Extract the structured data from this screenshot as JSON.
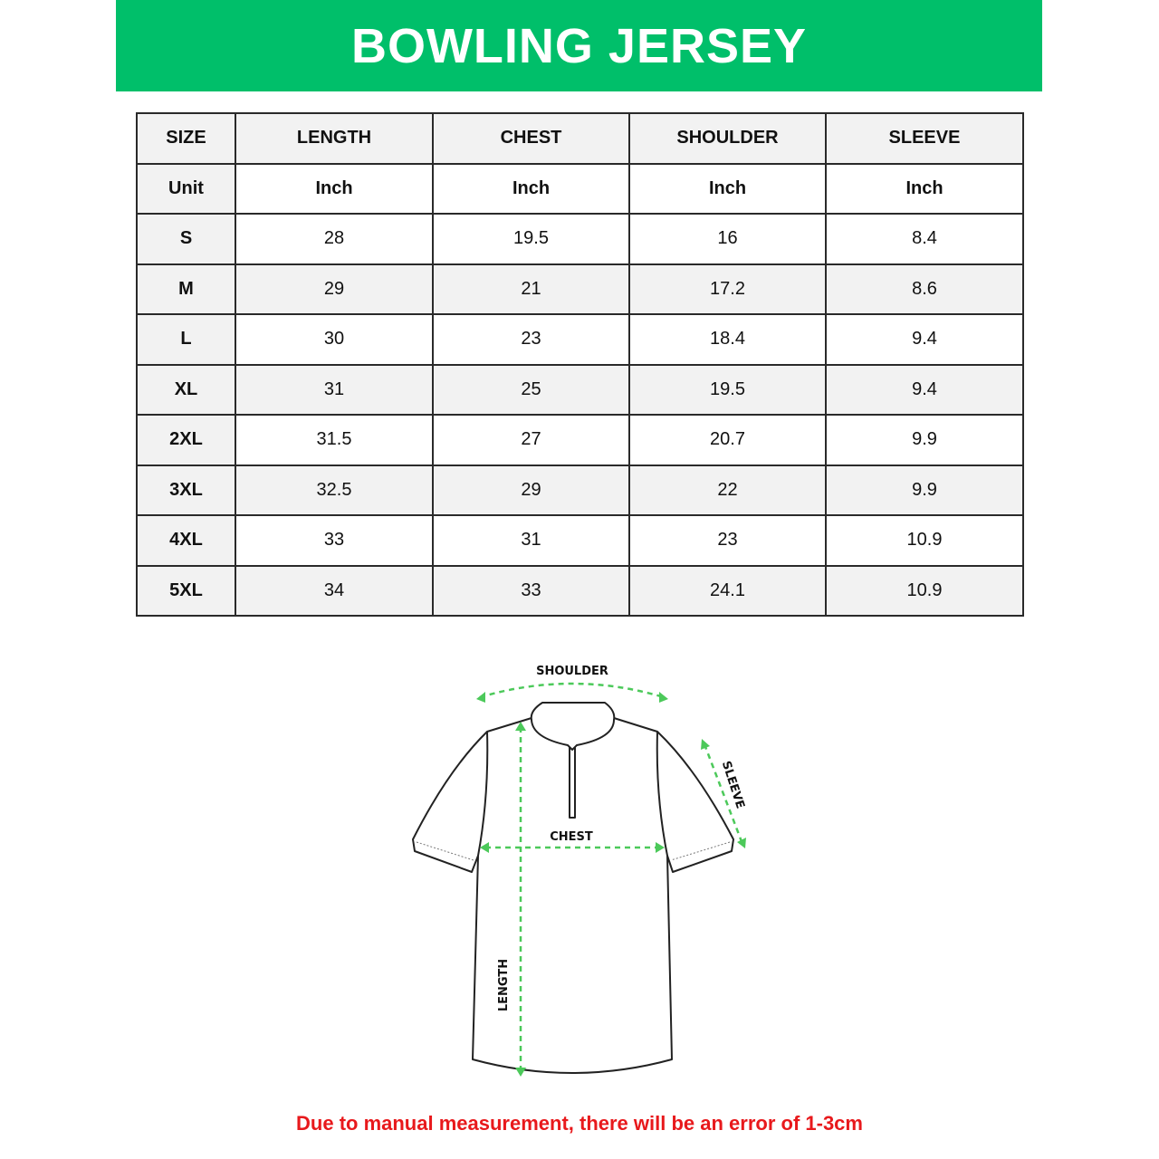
{
  "title": "BOWLING JERSEY",
  "table": {
    "headers": [
      "SIZE",
      "LENGTH",
      "CHEST",
      "SHOULDER",
      "SLEEVE"
    ],
    "unit_row": [
      "Unit",
      "Inch",
      "Inch",
      "Inch",
      "Inch"
    ],
    "rows": [
      [
        "S",
        "28",
        "19.5",
        "16",
        "8.4"
      ],
      [
        "M",
        "29",
        "21",
        "17.2",
        "8.6"
      ],
      [
        "L",
        "30",
        "23",
        "18.4",
        "9.4"
      ],
      [
        "XL",
        "31",
        "25",
        "19.5",
        "9.4"
      ],
      [
        "2XL",
        "31.5",
        "27",
        "20.7",
        "9.9"
      ],
      [
        "3XL",
        "32.5",
        "29",
        "22",
        "9.9"
      ],
      [
        "4XL",
        "33",
        "31",
        "23",
        "10.9"
      ],
      [
        "5XL",
        "34",
        "33",
        "24.1",
        "10.9"
      ]
    ]
  },
  "diagram": {
    "shoulder": "SHOULDER",
    "chest": "CHEST",
    "sleeve": "SLEEVE",
    "length": "LENGTH"
  },
  "note": "Due to manual measurement, there will be an error of 1-3cm",
  "colors": {
    "banner": "#00bf6a",
    "arrows": "#4cc95a",
    "note": "#e8191c"
  }
}
